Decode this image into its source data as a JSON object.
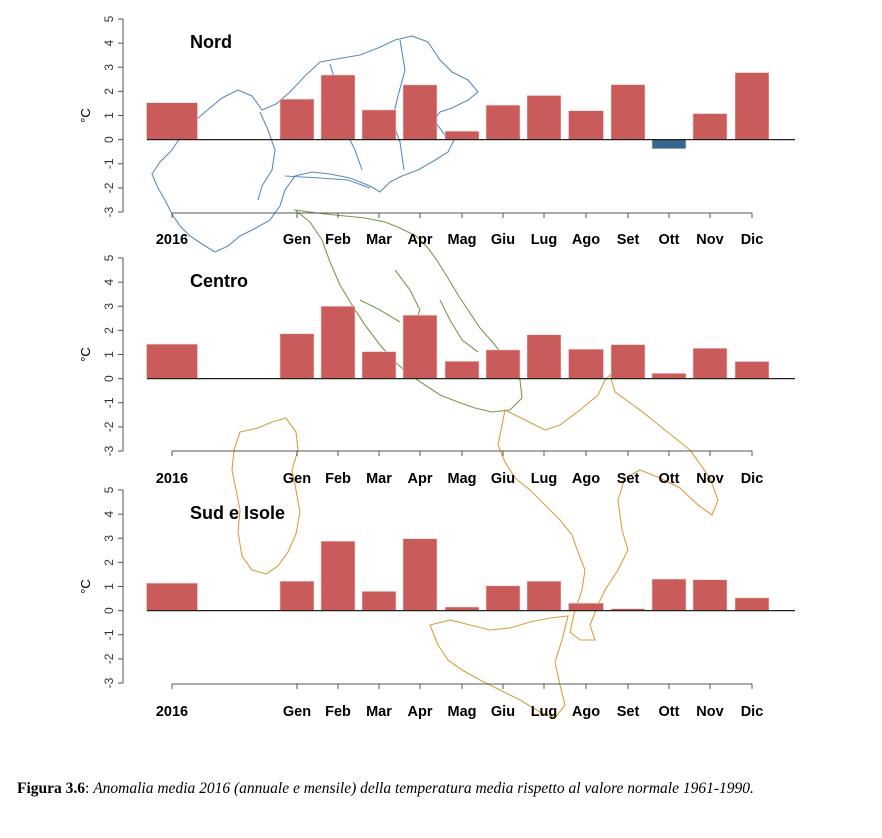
{
  "chart_data": [
    {
      "type": "bar",
      "title": "Nord",
      "ylabel": "°C",
      "xlabel": "",
      "ylim": [
        -3,
        5
      ],
      "yticks": [
        "-3",
        "-2",
        "-1",
        "0",
        "1",
        "2",
        "3",
        "4",
        "5"
      ],
      "grid": false,
      "categories": [
        "2016",
        "Gen",
        "Feb",
        "Mar",
        "Apr",
        "Mag",
        "Giu",
        "Lug",
        "Ago",
        "Set",
        "Ott",
        "Nov",
        "Dic"
      ],
      "values": [
        1.53,
        1.68,
        2.68,
        1.23,
        2.27,
        0.35,
        1.43,
        1.83,
        1.2,
        2.28,
        -0.38,
        1.08,
        2.78
      ],
      "map_outline_color": "#4A7FB5"
    },
    {
      "type": "bar",
      "title": "Centro",
      "ylabel": "°C",
      "xlabel": "",
      "ylim": [
        -3,
        5
      ],
      "yticks": [
        "-3",
        "-2",
        "-1",
        "0",
        "1",
        "2",
        "3",
        "4",
        "5"
      ],
      "grid": false,
      "categories": [
        "2016",
        "Gen",
        "Feb",
        "Mar",
        "Apr",
        "Mag",
        "Giu",
        "Lug",
        "Ago",
        "Set",
        "Ott",
        "Nov",
        "Dic"
      ],
      "values": [
        1.43,
        1.86,
        3.0,
        1.12,
        2.63,
        0.72,
        1.19,
        1.82,
        1.22,
        1.41,
        0.22,
        1.26,
        0.71
      ],
      "map_outline_color": "#6B8E3D"
    },
    {
      "type": "bar",
      "title": "Sud e Isole",
      "ylabel": "°C",
      "xlabel": "",
      "ylim": [
        -3,
        5
      ],
      "yticks": [
        "-3",
        "-2",
        "-1",
        "0",
        "1",
        "2",
        "3",
        "4",
        "5"
      ],
      "grid": false,
      "categories": [
        "2016",
        "Gen",
        "Feb",
        "Mar",
        "Apr",
        "Mag",
        "Giu",
        "Lug",
        "Ago",
        "Set",
        "Ott",
        "Nov",
        "Dic"
      ],
      "values": [
        1.14,
        1.22,
        2.88,
        0.8,
        2.98,
        0.15,
        1.03,
        1.22,
        0.31,
        0.08,
        1.31,
        1.28,
        0.53
      ],
      "map_outline_color": "#D4952A"
    }
  ],
  "colors": {
    "positive_bar": "#C95B5B",
    "negative_bar": "#35668F",
    "axis": "#555555",
    "zero_line": "#222222"
  },
  "caption": {
    "label": "Figura 3.6",
    "separator": ": ",
    "text": "Anomalia media 2016 (annuale e mensile) della temperatura media rispetto al valore normale 1961-1990."
  }
}
